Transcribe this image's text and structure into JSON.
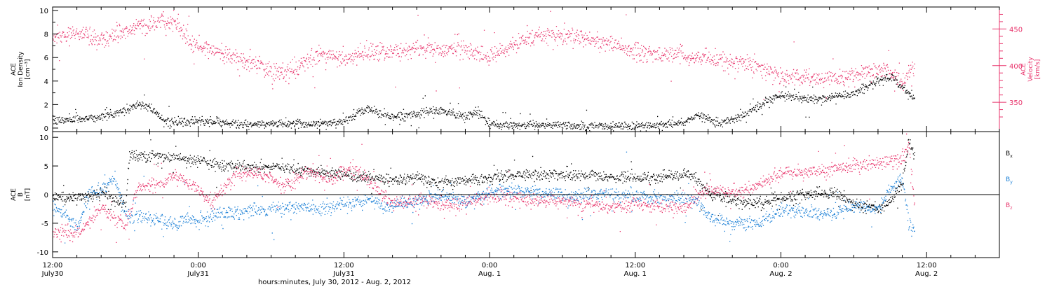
{
  "colors": {
    "density": "#000000",
    "velocity": "#e8336b",
    "bx": "#000000",
    "by": "#1a7fd6",
    "bz": "#e8336b",
    "axis": "#000000"
  },
  "xaxis": {
    "range_hours": [
      0,
      78
    ],
    "title": "hours:minutes, July 30, 2012 - Aug.  2, 2012",
    "ticks": [
      {
        "h": 0,
        "line1": "12:00",
        "line2": "July30"
      },
      {
        "h": 12,
        "line1": "0:00",
        "line2": "July31"
      },
      {
        "h": 24,
        "line1": "12:00",
        "line2": "July31"
      },
      {
        "h": 36,
        "line1": "0:00",
        "line2": "Aug. 1"
      },
      {
        "h": 48,
        "line1": "12:00",
        "line2": "Aug. 1"
      },
      {
        "h": 60,
        "line1": "0:00",
        "line2": "Aug. 2"
      },
      {
        "h": 72,
        "line1": "12:00",
        "line2": "Aug. 2"
      }
    ]
  },
  "chart_data": [
    {
      "type": "scatter",
      "panel": "top",
      "left_axis": {
        "label_lines": [
          "ACE",
          "Ion Density",
          "[cm⁻³]"
        ],
        "range": [
          -0.3,
          10.3
        ],
        "ticks": [
          0,
          2,
          4,
          6,
          8,
          10
        ]
      },
      "right_axis": {
        "label_lines": [
          "ACE",
          "Velocity",
          "[km/s]"
        ],
        "range": [
          310,
          480
        ],
        "ticks": [
          350,
          400,
          450
        ]
      },
      "series": [
        {
          "key": "density",
          "axis": "left",
          "color": "#000000",
          "anchors": [
            [
              0,
              0.6
            ],
            [
              2,
              0.8
            ],
            [
              4,
              1.0
            ],
            [
              6,
              1.5
            ],
            [
              7,
              2.1
            ],
            [
              8,
              1.8
            ],
            [
              9,
              0.8
            ],
            [
              10,
              0.5
            ],
            [
              12,
              0.6
            ],
            [
              14,
              0.5
            ],
            [
              16,
              0.3
            ],
            [
              18,
              0.4
            ],
            [
              20,
              0.4
            ],
            [
              22,
              0.4
            ],
            [
              24,
              0.6
            ],
            [
              25,
              1.2
            ],
            [
              26,
              1.7
            ],
            [
              27,
              1.2
            ],
            [
              28,
              1.0
            ],
            [
              30,
              1.2
            ],
            [
              32,
              1.5
            ],
            [
              34,
              1.0
            ],
            [
              35,
              1.5
            ],
            [
              36,
              0.3
            ],
            [
              38,
              0.3
            ],
            [
              40,
              0.3
            ],
            [
              42,
              0.3
            ],
            [
              44,
              0.2
            ],
            [
              46,
              0.2
            ],
            [
              48,
              0.2
            ],
            [
              50,
              0.3
            ],
            [
              52,
              0.5
            ],
            [
              53,
              1.2
            ],
            [
              54,
              0.8
            ],
            [
              55,
              0.5
            ],
            [
              56,
              0.8
            ],
            [
              57,
              1.2
            ],
            [
              58,
              1.8
            ],
            [
              59,
              2.5
            ],
            [
              60,
              2.8
            ],
            [
              62,
              2.5
            ],
            [
              64,
              2.6
            ],
            [
              66,
              3.0
            ],
            [
              68,
              4.0
            ],
            [
              69,
              4.5
            ],
            [
              70,
              3.5
            ],
            [
              71,
              2.5
            ]
          ],
          "noise": 0.3
        },
        {
          "key": "velocity",
          "axis": "right",
          "color": "#e8336b",
          "anchors": [
            [
              0,
              440
            ],
            [
              2,
              445
            ],
            [
              4,
              435
            ],
            [
              6,
              448
            ],
            [
              8,
              458
            ],
            [
              10,
              460
            ],
            [
              11,
              440
            ],
            [
              12,
              425
            ],
            [
              14,
              420
            ],
            [
              16,
              405
            ],
            [
              18,
              395
            ],
            [
              19,
              390
            ],
            [
              20,
              398
            ],
            [
              22,
              415
            ],
            [
              24,
              410
            ],
            [
              26,
              420
            ],
            [
              28,
              420
            ],
            [
              30,
              423
            ],
            [
              32,
              423
            ],
            [
              34,
              425
            ],
            [
              36,
              410
            ],
            [
              38,
              430
            ],
            [
              40,
              442
            ],
            [
              42,
              440
            ],
            [
              44,
              438
            ],
            [
              46,
              430
            ],
            [
              48,
              420
            ],
            [
              50,
              415
            ],
            [
              52,
              415
            ],
            [
              54,
              410
            ],
            [
              56,
              405
            ],
            [
              58,
              400
            ],
            [
              60,
              385
            ],
            [
              62,
              385
            ],
            [
              64,
              380
            ],
            [
              66,
              385
            ],
            [
              68,
              395
            ],
            [
              69,
              395
            ],
            [
              70,
              375
            ],
            [
              71,
              400
            ]
          ],
          "noise": 10
        }
      ]
    },
    {
      "type": "scatter",
      "panel": "bottom",
      "left_axis": {
        "label_lines": [
          "ACE",
          "B",
          "[nT]"
        ],
        "range": [
          -11,
          11
        ],
        "ticks": [
          -10,
          -5,
          0,
          5,
          10
        ]
      },
      "zero_line": true,
      "legend": [
        {
          "key": "bx",
          "base": "B",
          "sub": "x",
          "color": "#000000"
        },
        {
          "key": "by",
          "base": "B",
          "sub": "y",
          "color": "#1a7fd6"
        },
        {
          "key": "bz",
          "base": "B",
          "sub": "z",
          "color": "#e8336b"
        }
      ],
      "series": [
        {
          "key": "bx",
          "color": "#000000",
          "anchors": [
            [
              0,
              -0.5
            ],
            [
              2,
              -0.5
            ],
            [
              4,
              0.5
            ],
            [
              6,
              -2.0
            ],
            [
              6.3,
              7.0
            ],
            [
              10,
              6.5
            ],
            [
              12,
              6.0
            ],
            [
              14,
              5.0
            ],
            [
              16,
              5.0
            ],
            [
              18,
              5.0
            ],
            [
              20,
              4.5
            ],
            [
              22,
              4.0
            ],
            [
              24,
              3.5
            ],
            [
              26,
              3.0
            ],
            [
              28,
              2.5
            ],
            [
              30,
              3.0
            ],
            [
              32,
              2.0
            ],
            [
              34,
              2.5
            ],
            [
              36,
              3.0
            ],
            [
              38,
              3.5
            ],
            [
              40,
              3.5
            ],
            [
              42,
              3.5
            ],
            [
              44,
              3.5
            ],
            [
              46,
              3.0
            ],
            [
              48,
              3.0
            ],
            [
              50,
              3.0
            ],
            [
              52,
              3.5
            ],
            [
              53,
              3.0
            ],
            [
              54,
              0.5
            ],
            [
              56,
              -1.0
            ],
            [
              58,
              -1.5
            ],
            [
              60,
              -0.5
            ],
            [
              62,
              0
            ],
            [
              64,
              0.5
            ],
            [
              66,
              -1.5
            ],
            [
              68,
              -2.5
            ],
            [
              69,
              -1.0
            ],
            [
              70,
              2.0
            ],
            [
              70.5,
              9.5
            ],
            [
              71,
              7.0
            ]
          ],
          "noise": 0.8
        },
        {
          "key": "by",
          "color": "#1a7fd6",
          "anchors": [
            [
              0,
              -2.0
            ],
            [
              1,
              -3.0
            ],
            [
              2,
              -6.0
            ],
            [
              3,
              0.5
            ],
            [
              4,
              1.0
            ],
            [
              5,
              3.0
            ],
            [
              6,
              -3.5
            ],
            [
              8,
              -4.0
            ],
            [
              10,
              -5.0
            ],
            [
              11,
              -4.0
            ],
            [
              12,
              -4.5
            ],
            [
              14,
              -3.0
            ],
            [
              16,
              -3.0
            ],
            [
              18,
              -2.5
            ],
            [
              20,
              -2.0
            ],
            [
              22,
              -2.5
            ],
            [
              24,
              -1.5
            ],
            [
              26,
              -1.0
            ],
            [
              28,
              -2.0
            ],
            [
              30,
              -1.0
            ],
            [
              32,
              0
            ],
            [
              34,
              -1.0
            ],
            [
              36,
              0.5
            ],
            [
              38,
              1.0
            ],
            [
              40,
              0.5
            ],
            [
              42,
              0
            ],
            [
              44,
              0
            ],
            [
              46,
              0
            ],
            [
              48,
              0
            ],
            [
              50,
              -0.5
            ],
            [
              52,
              -0.5
            ],
            [
              53,
              -1.0
            ],
            [
              54,
              -4.0
            ],
            [
              56,
              -5.0
            ],
            [
              58,
              -5.0
            ],
            [
              60,
              -2.5
            ],
            [
              62,
              -3.0
            ],
            [
              64,
              -3.5
            ],
            [
              66,
              -2.0
            ],
            [
              68,
              -2.5
            ],
            [
              69,
              1.0
            ],
            [
              70,
              3.0
            ],
            [
              70.5,
              -5.5
            ],
            [
              71,
              -6.5
            ]
          ],
          "noise": 1.0
        },
        {
          "key": "bz",
          "color": "#e8336b",
          "anchors": [
            [
              0,
              -6.5
            ],
            [
              2,
              -6.5
            ],
            [
              3,
              -5.0
            ],
            [
              4,
              -2.0
            ],
            [
              5,
              -4.0
            ],
            [
              6,
              -5.0
            ],
            [
              7,
              1.5
            ],
            [
              9,
              2.0
            ],
            [
              10,
              3.5
            ],
            [
              12,
              1.0
            ],
            [
              13,
              -1.5
            ],
            [
              15,
              3.5
            ],
            [
              17,
              4.0
            ],
            [
              19,
              1.5
            ],
            [
              21,
              4.0
            ],
            [
              23,
              2.5
            ],
            [
              24,
              4.5
            ],
            [
              25,
              4.5
            ],
            [
              26,
              2.5
            ],
            [
              28,
              -1.5
            ],
            [
              30,
              -1.0
            ],
            [
              32,
              -1.5
            ],
            [
              34,
              -1.5
            ],
            [
              36,
              0
            ],
            [
              38,
              -0.5
            ],
            [
              40,
              -1.0
            ],
            [
              42,
              -1.0
            ],
            [
              44,
              -1.5
            ],
            [
              46,
              -2.0
            ],
            [
              48,
              -1.5
            ],
            [
              50,
              -2.0
            ],
            [
              52,
              -2.0
            ],
            [
              53,
              -0.5
            ],
            [
              54,
              1.0
            ],
            [
              56,
              0.5
            ],
            [
              58,
              1.5
            ],
            [
              60,
              4.0
            ],
            [
              62,
              4.0
            ],
            [
              64,
              4.5
            ],
            [
              66,
              5.0
            ],
            [
              68,
              5.5
            ],
            [
              69,
              6.0
            ],
            [
              70,
              6.0
            ],
            [
              70.5,
              9.0
            ],
            [
              71,
              -2.0
            ]
          ],
          "noise": 1.0
        }
      ]
    }
  ]
}
